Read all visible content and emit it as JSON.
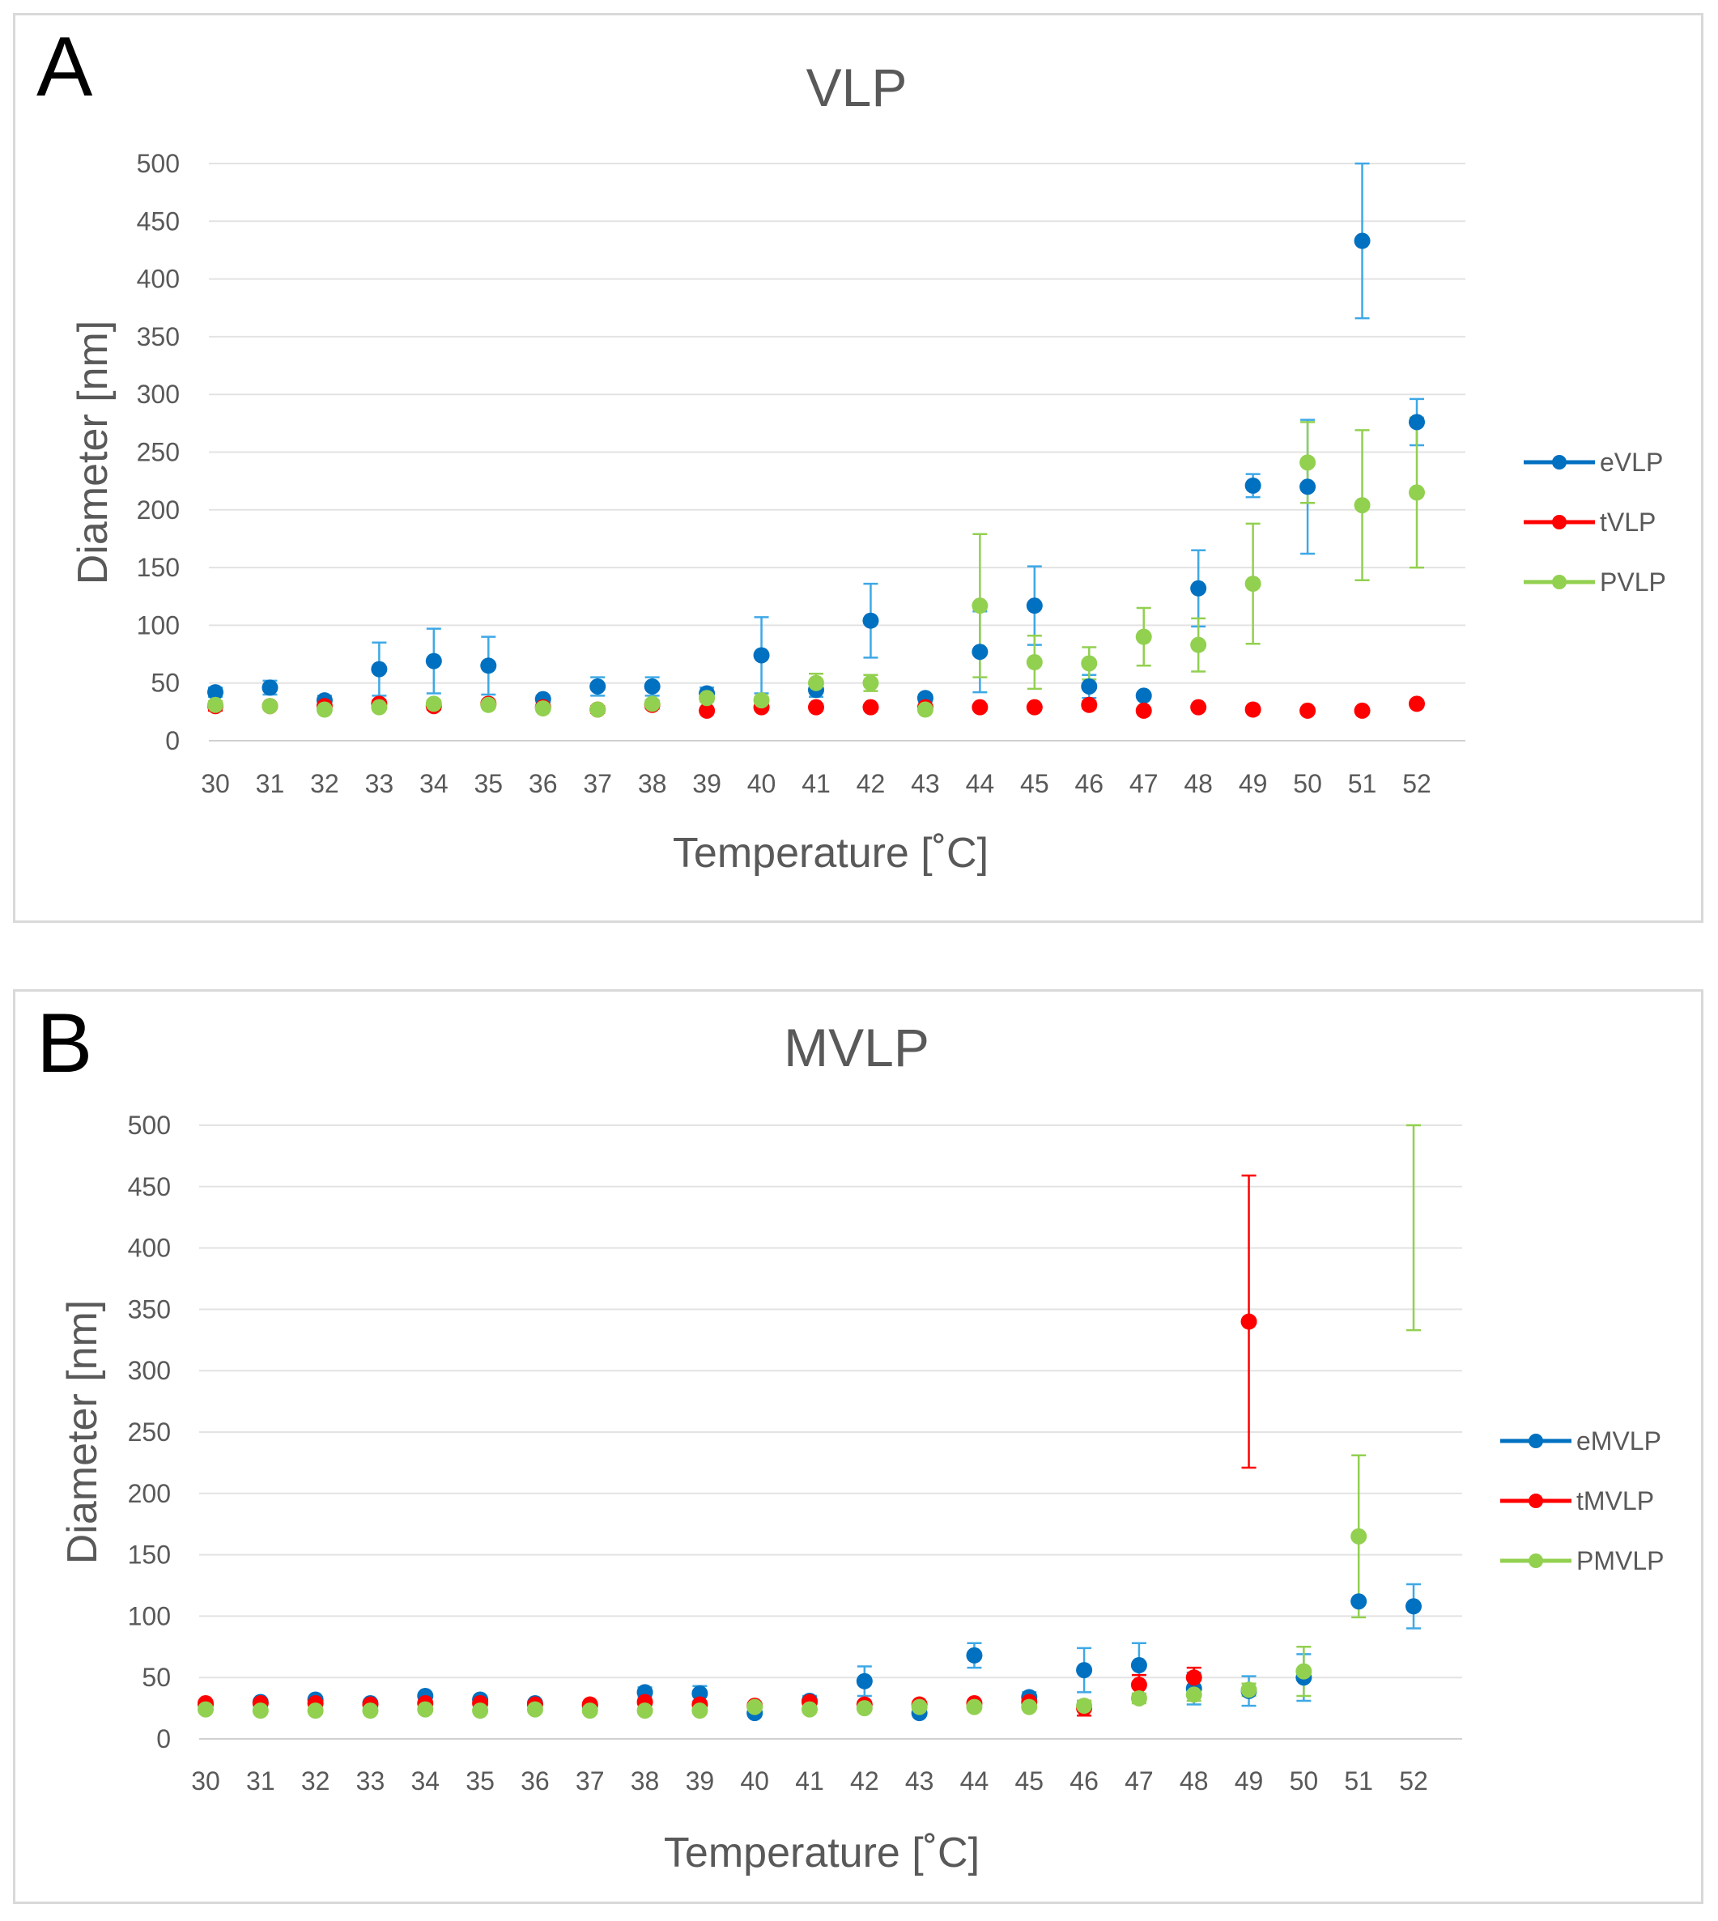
{
  "chart_data": [
    {
      "type": "scatter",
      "panel_label": "A",
      "title": "VLP",
      "xlabel": "Temperature  [˚C]",
      "ylabel": "Diameter [nm]",
      "ylim": [
        0,
        500
      ],
      "yticks": [
        0,
        50,
        100,
        150,
        200,
        250,
        300,
        350,
        400,
        450,
        500
      ],
      "x": [
        30,
        31,
        32,
        33,
        34,
        35,
        36,
        37,
        38,
        39,
        40,
        41,
        42,
        43,
        44,
        45,
        46,
        47,
        48,
        49,
        50,
        51,
        52
      ],
      "grid": true,
      "legend_position": "right",
      "series": [
        {
          "name": "eVLP",
          "color": "#0070c0",
          "errcolor": "#3ea8e6",
          "values": [
            42,
            46,
            35,
            62,
            69,
            65,
            36,
            47,
            47,
            41,
            74,
            44,
            104,
            37,
            77,
            117,
            47,
            39,
            132,
            221,
            220,
            433,
            276
          ],
          "err": [
            4,
            6,
            4,
            23,
            28,
            25,
            3,
            8,
            8,
            5,
            33,
            6,
            32,
            3,
            35,
            34,
            10,
            2,
            33,
            10,
            58,
            67,
            20
          ]
        },
        {
          "name": "tVLP",
          "color": "#ff0000",
          "errcolor": "#ff0000",
          "values": [
            30,
            30,
            30,
            32,
            30,
            32,
            29,
            27,
            31,
            26,
            29,
            29,
            29,
            29,
            29,
            29,
            31,
            26,
            29,
            27,
            26,
            26,
            32
          ],
          "err": [
            4,
            2,
            2,
            3,
            3,
            2,
            2,
            3,
            3,
            2,
            2,
            2,
            2,
            2,
            2,
            2,
            3,
            2,
            2,
            2,
            2,
            2,
            2
          ]
        },
        {
          "name": "PVLP",
          "color": "#92d050",
          "errcolor": "#92d050",
          "values": [
            31,
            30,
            27,
            29,
            32,
            31,
            28,
            27,
            32,
            37,
            35,
            50,
            50,
            27,
            117,
            68,
            67,
            90,
            83,
            136,
            241,
            204,
            215
          ],
          "err": [
            3,
            2,
            2,
            2,
            3,
            2,
            2,
            2,
            3,
            3,
            3,
            8,
            7,
            2,
            62,
            23,
            14,
            25,
            23,
            52,
            35,
            65,
            65
          ]
        }
      ]
    },
    {
      "type": "scatter",
      "panel_label": "B",
      "title": "MVLP",
      "xlabel": "Temperature  [˚C]",
      "ylabel": "Diameter [nm]",
      "ylim": [
        0,
        500
      ],
      "yticks": [
        0,
        50,
        100,
        150,
        200,
        250,
        300,
        350,
        400,
        450,
        500
      ],
      "x": [
        30,
        31,
        32,
        33,
        34,
        35,
        36,
        37,
        38,
        39,
        40,
        41,
        42,
        43,
        44,
        45,
        46,
        47,
        48,
        49,
        50,
        51,
        52
      ],
      "grid": true,
      "legend_position": "right",
      "series": [
        {
          "name": "eMVLP",
          "color": "#0070c0",
          "errcolor": "#3ea8e6",
          "values": [
            28,
            30,
            32,
            29,
            35,
            32,
            29,
            27,
            38,
            37,
            21,
            31,
            47,
            21,
            68,
            34,
            56,
            60,
            41,
            39,
            50,
            112,
            108
          ],
          "err": [
            2,
            2,
            2,
            2,
            2,
            2,
            2,
            2,
            4,
            6,
            2,
            4,
            12,
            2,
            10,
            4,
            18,
            18,
            13,
            12,
            19,
            null,
            18
          ]
        },
        {
          "name": "tMVLP",
          "color": "#ff0000",
          "errcolor": "#ff0000",
          "values": [
            29,
            29,
            29,
            28,
            29,
            29,
            28,
            28,
            30,
            28,
            27,
            30,
            28,
            28,
            29,
            30,
            25,
            44,
            50,
            340,
            null,
            null,
            null
          ],
          "err": [
            2,
            2,
            2,
            2,
            2,
            2,
            2,
            2,
            2,
            2,
            2,
            2,
            2,
            2,
            2,
            2,
            6,
            8,
            8,
            119,
            null,
            null,
            null
          ]
        },
        {
          "name": "PMVLP",
          "color": "#92d050",
          "errcolor": "#92d050",
          "values": [
            24,
            23,
            23,
            23,
            24,
            23,
            24,
            23,
            23,
            23,
            26,
            24,
            25,
            26,
            26,
            26,
            27,
            33,
            36,
            40,
            55,
            165,
            null
          ],
          "err": [
            2,
            2,
            2,
            2,
            2,
            2,
            2,
            2,
            2,
            2,
            2,
            2,
            2,
            2,
            2,
            2,
            4,
            4,
            5,
            5,
            20,
            66,
            null
          ],
          "extra_err_bar": {
            "x": 52,
            "low": 333,
            "high": 500
          }
        }
      ]
    }
  ]
}
